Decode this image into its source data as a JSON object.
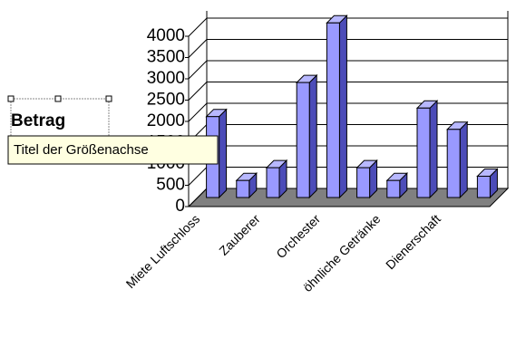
{
  "chart_data": {
    "type": "bar3d",
    "y_axis_label": "Betrag",
    "tooltip": "Titel der Größenachse",
    "categories": [
      "Miete Luftschloss",
      null,
      "Zauberer",
      null,
      "Orchester",
      null,
      "öhnliche Getränke",
      null,
      "Dienerschaft",
      null
    ],
    "values": [
      1900,
      400,
      700,
      2700,
      4100,
      700,
      400,
      2100,
      1600,
      500
    ],
    "color": "#9999ff",
    "ylim": [
      0,
      4000
    ],
    "yticks": [
      0,
      500,
      1000,
      1500,
      2000,
      2500,
      3000,
      3500,
      4000
    ],
    "grid": true
  }
}
